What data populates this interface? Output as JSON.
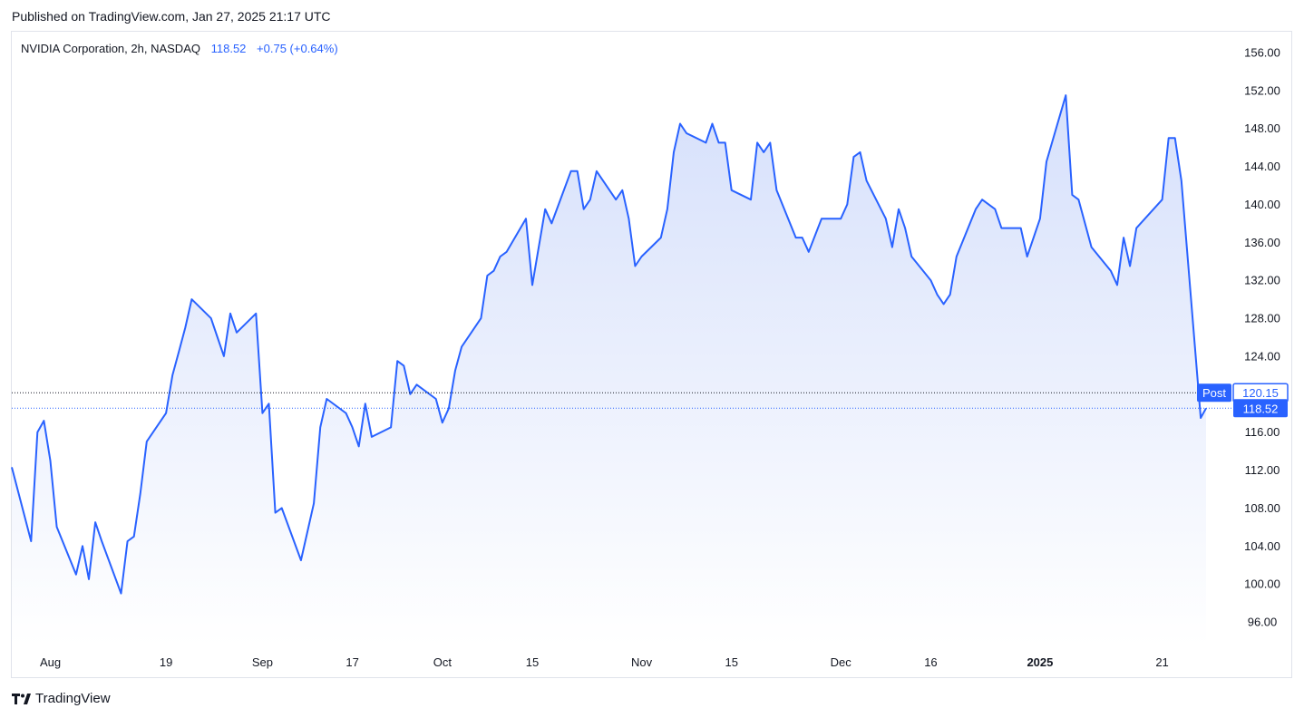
{
  "header": {
    "published": "Published on TradingView.com, Jan 27, 2025 21:17 UTC"
  },
  "legend": {
    "symbol": "NVIDIA Corporation, 2h, NASDAQ",
    "price": "118.52",
    "change": "+0.75 (+0.64%)"
  },
  "footer": {
    "brand": "TradingView"
  },
  "colors": {
    "line": "#2962ff",
    "fill_top": "#d6e0fb",
    "fill_bottom": "#ffffff",
    "axis_text": "#131722",
    "post_badge": "#2962ff"
  },
  "chart_data": {
    "type": "area",
    "series": [
      {
        "name": "NVDA",
        "points": [
          [
            "2024-07-26",
            112.3
          ],
          [
            "2024-07-29",
            104.5
          ],
          [
            "2024-07-30",
            116.0
          ],
          [
            "2024-07-31",
            117.2
          ],
          [
            "2024-08-01",
            113.0
          ],
          [
            "2024-08-02",
            106.0
          ],
          [
            "2024-08-05",
            101.0
          ],
          [
            "2024-08-06",
            104.0
          ],
          [
            "2024-08-07",
            100.5
          ],
          [
            "2024-08-08",
            106.5
          ],
          [
            "2024-08-09",
            104.5
          ],
          [
            "2024-08-12",
            99.0
          ],
          [
            "2024-08-13",
            104.5
          ],
          [
            "2024-08-14",
            105.0
          ],
          [
            "2024-08-15",
            109.5
          ],
          [
            "2024-08-16",
            115.0
          ],
          [
            "2024-08-19",
            118.0
          ],
          [
            "2024-08-20",
            122.0
          ],
          [
            "2024-08-21",
            124.5
          ],
          [
            "2024-08-22",
            127.0
          ],
          [
            "2024-08-23",
            130.0
          ],
          [
            "2024-08-26",
            128.0
          ],
          [
            "2024-08-27",
            126.0
          ],
          [
            "2024-08-28",
            124.0
          ],
          [
            "2024-08-29",
            128.5
          ],
          [
            "2024-08-30",
            126.5
          ],
          [
            "2024-09-02",
            128.5
          ],
          [
            "2024-09-03",
            118.0
          ],
          [
            "2024-09-04",
            119.0
          ],
          [
            "2024-09-05",
            107.5
          ],
          [
            "2024-09-06",
            108.0
          ],
          [
            "2024-09-09",
            102.5
          ],
          [
            "2024-09-10",
            105.5
          ],
          [
            "2024-09-11",
            108.5
          ],
          [
            "2024-09-12",
            116.5
          ],
          [
            "2024-09-13",
            119.5
          ],
          [
            "2024-09-16",
            118.0
          ],
          [
            "2024-09-17",
            116.5
          ],
          [
            "2024-09-18",
            114.5
          ],
          [
            "2024-09-19",
            119.0
          ],
          [
            "2024-09-20",
            115.5
          ],
          [
            "2024-09-23",
            116.5
          ],
          [
            "2024-09-24",
            123.5
          ],
          [
            "2024-09-25",
            123.0
          ],
          [
            "2024-09-26",
            120.0
          ],
          [
            "2024-09-27",
            121.0
          ],
          [
            "2024-09-30",
            119.5
          ],
          [
            "2024-10-01",
            117.0
          ],
          [
            "2024-10-02",
            118.5
          ],
          [
            "2024-10-03",
            122.5
          ],
          [
            "2024-10-04",
            125.0
          ],
          [
            "2024-10-07",
            128.0
          ],
          [
            "2024-10-08",
            132.5
          ],
          [
            "2024-10-09",
            133.0
          ],
          [
            "2024-10-10",
            134.5
          ],
          [
            "2024-10-11",
            135.0
          ],
          [
            "2024-10-14",
            138.5
          ],
          [
            "2024-10-15",
            131.5
          ],
          [
            "2024-10-16",
            135.5
          ],
          [
            "2024-10-17",
            139.5
          ],
          [
            "2024-10-18",
            138.0
          ],
          [
            "2024-10-21",
            143.5
          ],
          [
            "2024-10-22",
            143.5
          ],
          [
            "2024-10-23",
            139.5
          ],
          [
            "2024-10-24",
            140.5
          ],
          [
            "2024-10-25",
            143.5
          ],
          [
            "2024-10-28",
            140.5
          ],
          [
            "2024-10-29",
            141.5
          ],
          [
            "2024-10-30",
            138.5
          ],
          [
            "2024-10-31",
            133.5
          ],
          [
            "2024-11-01",
            134.5
          ],
          [
            "2024-11-04",
            136.5
          ],
          [
            "2024-11-05",
            139.5
          ],
          [
            "2024-11-06",
            145.5
          ],
          [
            "2024-11-07",
            148.5
          ],
          [
            "2024-11-08",
            147.5
          ],
          [
            "2024-11-11",
            146.5
          ],
          [
            "2024-11-12",
            148.5
          ],
          [
            "2024-11-13",
            146.5
          ],
          [
            "2024-11-14",
            146.5
          ],
          [
            "2024-11-15",
            141.5
          ],
          [
            "2024-11-18",
            140.5
          ],
          [
            "2024-11-19",
            146.5
          ],
          [
            "2024-11-20",
            145.5
          ],
          [
            "2024-11-21",
            146.5
          ],
          [
            "2024-11-22",
            141.5
          ],
          [
            "2024-11-25",
            136.5
          ],
          [
            "2024-11-26",
            136.5
          ],
          [
            "2024-11-27",
            135.0
          ],
          [
            "2024-11-29",
            138.5
          ],
          [
            "2024-12-02",
            138.5
          ],
          [
            "2024-12-03",
            140.0
          ],
          [
            "2024-12-04",
            145.0
          ],
          [
            "2024-12-05",
            145.5
          ],
          [
            "2024-12-06",
            142.5
          ],
          [
            "2024-12-09",
            138.5
          ],
          [
            "2024-12-10",
            135.5
          ],
          [
            "2024-12-11",
            139.5
          ],
          [
            "2024-12-12",
            137.5
          ],
          [
            "2024-12-13",
            134.5
          ],
          [
            "2024-12-16",
            132.0
          ],
          [
            "2024-12-17",
            130.5
          ],
          [
            "2024-12-18",
            129.5
          ],
          [
            "2024-12-19",
            130.5
          ],
          [
            "2024-12-20",
            134.5
          ],
          [
            "2024-12-23",
            139.5
          ],
          [
            "2024-12-24",
            140.5
          ],
          [
            "2024-12-26",
            139.5
          ],
          [
            "2024-12-27",
            137.5
          ],
          [
            "2024-12-30",
            137.5
          ],
          [
            "2024-12-31",
            134.5
          ],
          [
            "2025-01-02",
            138.5
          ],
          [
            "2025-01-03",
            144.5
          ],
          [
            "2025-01-06",
            151.5
          ],
          [
            "2025-01-07",
            141.0
          ],
          [
            "2025-01-08",
            140.5
          ],
          [
            "2025-01-10",
            135.5
          ],
          [
            "2025-01-13",
            133.0
          ],
          [
            "2025-01-14",
            131.5
          ],
          [
            "2025-01-15",
            136.5
          ],
          [
            "2025-01-16",
            133.5
          ],
          [
            "2025-01-17",
            137.5
          ],
          [
            "2025-01-21",
            140.5
          ],
          [
            "2025-01-22",
            147.0
          ],
          [
            "2025-01-23",
            147.0
          ],
          [
            "2025-01-24",
            142.5
          ],
          [
            "2025-01-27",
            117.5
          ],
          [
            "2025-01-27T20:00",
            118.52
          ]
        ]
      }
    ],
    "x_ticks": [
      {
        "date": "2024-08-01",
        "label": "Aug",
        "bold": false
      },
      {
        "date": "2024-08-19",
        "label": "19",
        "bold": false
      },
      {
        "date": "2024-09-03",
        "label": "Sep",
        "bold": false
      },
      {
        "date": "2024-09-17",
        "label": "17",
        "bold": false
      },
      {
        "date": "2024-10-01",
        "label": "Oct",
        "bold": false
      },
      {
        "date": "2024-10-15",
        "label": "15",
        "bold": false
      },
      {
        "date": "2024-11-01",
        "label": "Nov",
        "bold": false
      },
      {
        "date": "2024-11-15",
        "label": "15",
        "bold": false
      },
      {
        "date": "2024-12-02",
        "label": "Dec",
        "bold": false
      },
      {
        "date": "2024-12-16",
        "label": "16",
        "bold": false
      },
      {
        "date": "2025-01-02",
        "label": "2025",
        "bold": true
      },
      {
        "date": "2025-01-21",
        "label": "21",
        "bold": false
      }
    ],
    "y_ticks": [
      96,
      100,
      104,
      108,
      112,
      116,
      120,
      124,
      128,
      132,
      136,
      140,
      144,
      148,
      152,
      156
    ],
    "ylim": [
      94,
      157.5
    ],
    "price_lines": [
      {
        "value": 120.15,
        "label": "120.15",
        "tag": "Post",
        "style": "outline"
      },
      {
        "value": 118.52,
        "label": "118.52",
        "style": "filled"
      }
    ],
    "grid": false,
    "legend_position": "top-left"
  }
}
